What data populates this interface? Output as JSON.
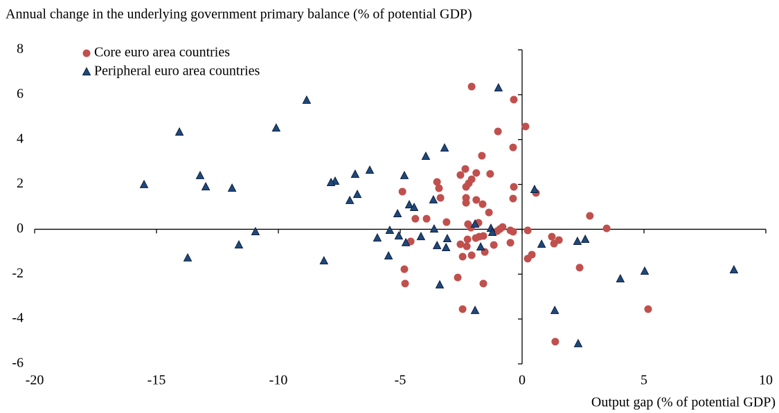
{
  "chart_data": {
    "type": "scatter",
    "title": "Annual change in the underlying government primary balance (% of potential GDP)",
    "x_label": "Output gap (% of potential GDP)",
    "xlim": [
      -20,
      10
    ],
    "xticks": [
      -20,
      -15,
      -10,
      -5,
      0,
      5,
      10
    ],
    "ylim": [
      -6,
      8
    ],
    "yticks": [
      -6,
      -4,
      -2,
      0,
      2,
      4,
      6,
      8
    ],
    "legend": "upper left",
    "series": [
      {
        "name": "Core euro area countries",
        "color": "#c0504d",
        "marker": "circle",
        "x": [
          -2.07,
          -0.34,
          -0.99,
          0.14,
          -0.37,
          -1.65,
          -2.33,
          -1.88,
          -2.53,
          -1.31,
          -2.07,
          -2.19,
          -3.49,
          -0.34,
          -2.3,
          -3.41,
          -4.91,
          0.57,
          -3.35,
          -2.3,
          -1.88,
          -0.37,
          -2.3,
          -1.62,
          -3.92,
          -4.38,
          -1.36,
          -3.1,
          2.78,
          3.47,
          -1.79,
          -2.22,
          -2.1,
          -0.8,
          -0.91,
          -1.02,
          -0.48,
          -0.37,
          0.23,
          -1.76,
          -1.59,
          -1.9,
          1.22,
          1.51,
          1.31,
          -4.57,
          -2.24,
          -2.53,
          -2.27,
          -1.16,
          -0.48,
          -1.53,
          -2.07,
          -2.44,
          0.4,
          0.23,
          -4.83,
          2.36,
          -2.64,
          -4.8,
          -1.59,
          -2.44,
          5.17,
          1.36
        ],
        "values": [
          6.36,
          5.78,
          4.36,
          4.58,
          3.65,
          3.28,
          2.69,
          2.51,
          2.42,
          2.47,
          2.23,
          2.05,
          2.11,
          1.89,
          1.89,
          1.83,
          1.68,
          1.62,
          1.4,
          1.4,
          1.31,
          1.37,
          1.18,
          1.12,
          0.47,
          0.47,
          0.75,
          0.32,
          0.6,
          0.04,
          0.29,
          0.23,
          0.07,
          0.1,
          0.01,
          -0.08,
          -0.05,
          -0.11,
          -0.05,
          -0.33,
          -0.3,
          -0.39,
          -0.33,
          -0.48,
          -0.64,
          -0.54,
          -0.45,
          -0.67,
          -0.76,
          -0.7,
          -0.6,
          -1.01,
          -1.16,
          -1.22,
          -1.13,
          -1.31,
          -1.78,
          -1.71,
          -2.15,
          -2.42,
          -2.42,
          -3.56,
          -3.56,
          -5.01
        ]
      },
      {
        "name": "Peripheral euro area countries",
        "color": "#1f497d",
        "marker": "triangle",
        "x": [
          -0.97,
          -8.84,
          -14.06,
          -10.09,
          -3.18,
          -3.95,
          -6.25,
          -13.21,
          -6.85,
          -4.83,
          -15.51,
          -7.67,
          -7.84,
          -12.98,
          -11.9,
          0.51,
          -6.76,
          -7.07,
          -3.64,
          -4.63,
          -4.43,
          -5.11,
          -1.93,
          -1.28,
          -3.61,
          -5.43,
          -1.22,
          -10.94,
          -5.06,
          -4.15,
          -5.94,
          -3.07,
          2.59,
          2.27,
          -4.77,
          -3.49,
          -11.62,
          -1.7,
          -3.12,
          0.8,
          -5.48,
          -13.72,
          -8.13,
          8.69,
          5.03,
          4.03,
          -3.38,
          -1.93,
          1.34,
          2.3
        ],
        "values": [
          6.3,
          5.75,
          4.33,
          4.51,
          3.62,
          3.25,
          2.63,
          2.39,
          2.45,
          2.39,
          1.99,
          2.14,
          2.08,
          1.89,
          1.83,
          1.77,
          1.55,
          1.28,
          1.31,
          1.09,
          0.97,
          0.69,
          0.23,
          0.04,
          0.01,
          -0.05,
          -0.14,
          -0.11,
          -0.3,
          -0.33,
          -0.39,
          -0.42,
          -0.45,
          -0.54,
          -0.6,
          -0.73,
          -0.7,
          -0.79,
          -0.82,
          -0.67,
          -1.19,
          -1.28,
          -1.41,
          -1.81,
          -1.87,
          -2.21,
          -2.48,
          -3.62,
          -3.62,
          -5.1
        ]
      }
    ]
  }
}
